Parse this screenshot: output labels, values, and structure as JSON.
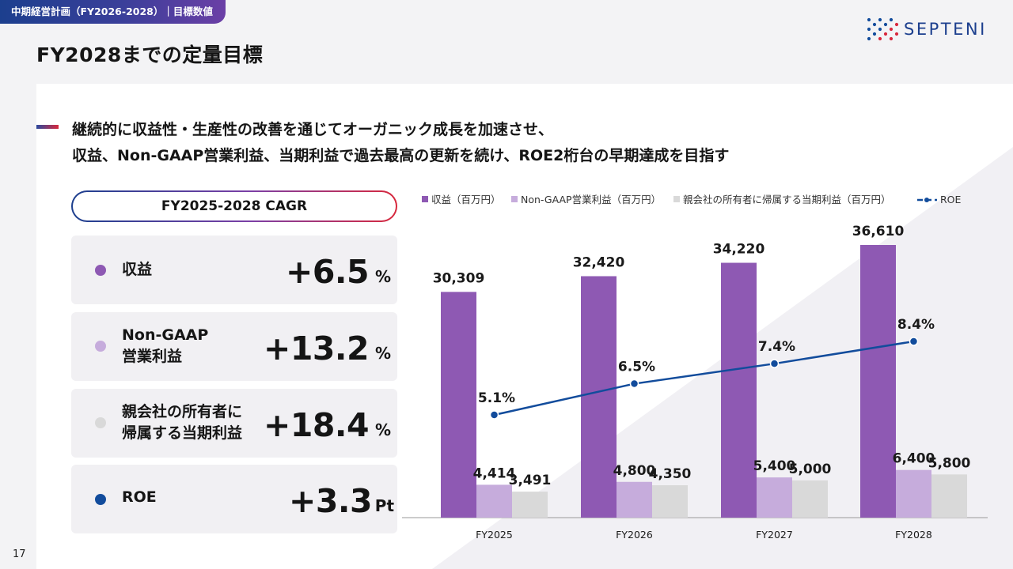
{
  "header": {
    "section_tag": "中期経営計画（FY2026-2028）｜目標数値",
    "title": "FY2028までの定量目標",
    "logo_text": "SEPTENI",
    "page_number": "17"
  },
  "lead": {
    "line1": "継続的に収益性・生産性の改善を通じてオーガニック成長を加速させ、",
    "line2": "収益、Non-GAAP営業利益、当期利益で過去最高の更新を続け、ROE2桁台の早期達成を目指す"
  },
  "cagr": {
    "heading": "FY2025-2028 CAGR",
    "items": [
      {
        "label_lines": [
          "収益"
        ],
        "value": "+6.5",
        "unit": "%",
        "color": "#8e59b3"
      },
      {
        "label_lines": [
          "Non-GAAP",
          "営業利益"
        ],
        "value": "+13.2",
        "unit": "%",
        "color": "#c6acdc"
      },
      {
        "label_lines": [
          "親会社の所有者に",
          "帰属する当期利益"
        ],
        "value": "+18.4",
        "unit": "%",
        "color": "#d9d9d9"
      },
      {
        "label_lines": [
          "ROE"
        ],
        "value": "+3.3",
        "unit": "Pt",
        "color": "#124c9c"
      }
    ]
  },
  "chart_data": {
    "type": "bar",
    "categories": [
      "FY2025",
      "FY2026",
      "FY2027",
      "FY2028"
    ],
    "series": [
      {
        "name": "収益（百万円）",
        "values": [
          30309,
          32420,
          34220,
          36610
        ],
        "labels": [
          "30,309",
          "32,420",
          "34,220",
          "36,610"
        ],
        "color": "#8e59b3"
      },
      {
        "name": "Non-GAAP営業利益（百万円）",
        "values": [
          4414,
          4800,
          5400,
          6400
        ],
        "labels": [
          "4,414",
          "4,800",
          "5,400",
          "6,400"
        ],
        "color": "#c6acdc"
      },
      {
        "name": "親会社の所有者に帰属する当期利益（百万円）",
        "values": [
          3491,
          4350,
          5000,
          5800
        ],
        "labels": [
          "3,491",
          "4,350",
          "5,000",
          "5,800"
        ],
        "color": "#d9d9d9"
      }
    ],
    "line_series": {
      "name": "ROE",
      "values": [
        5.1,
        6.5,
        7.4,
        8.4
      ],
      "labels": [
        "5.1%",
        "6.5%",
        "7.4%",
        "8.4%"
      ],
      "color": "#124c9c",
      "style": "line with dot markers"
    },
    "legend_position": "top",
    "grid": false
  }
}
